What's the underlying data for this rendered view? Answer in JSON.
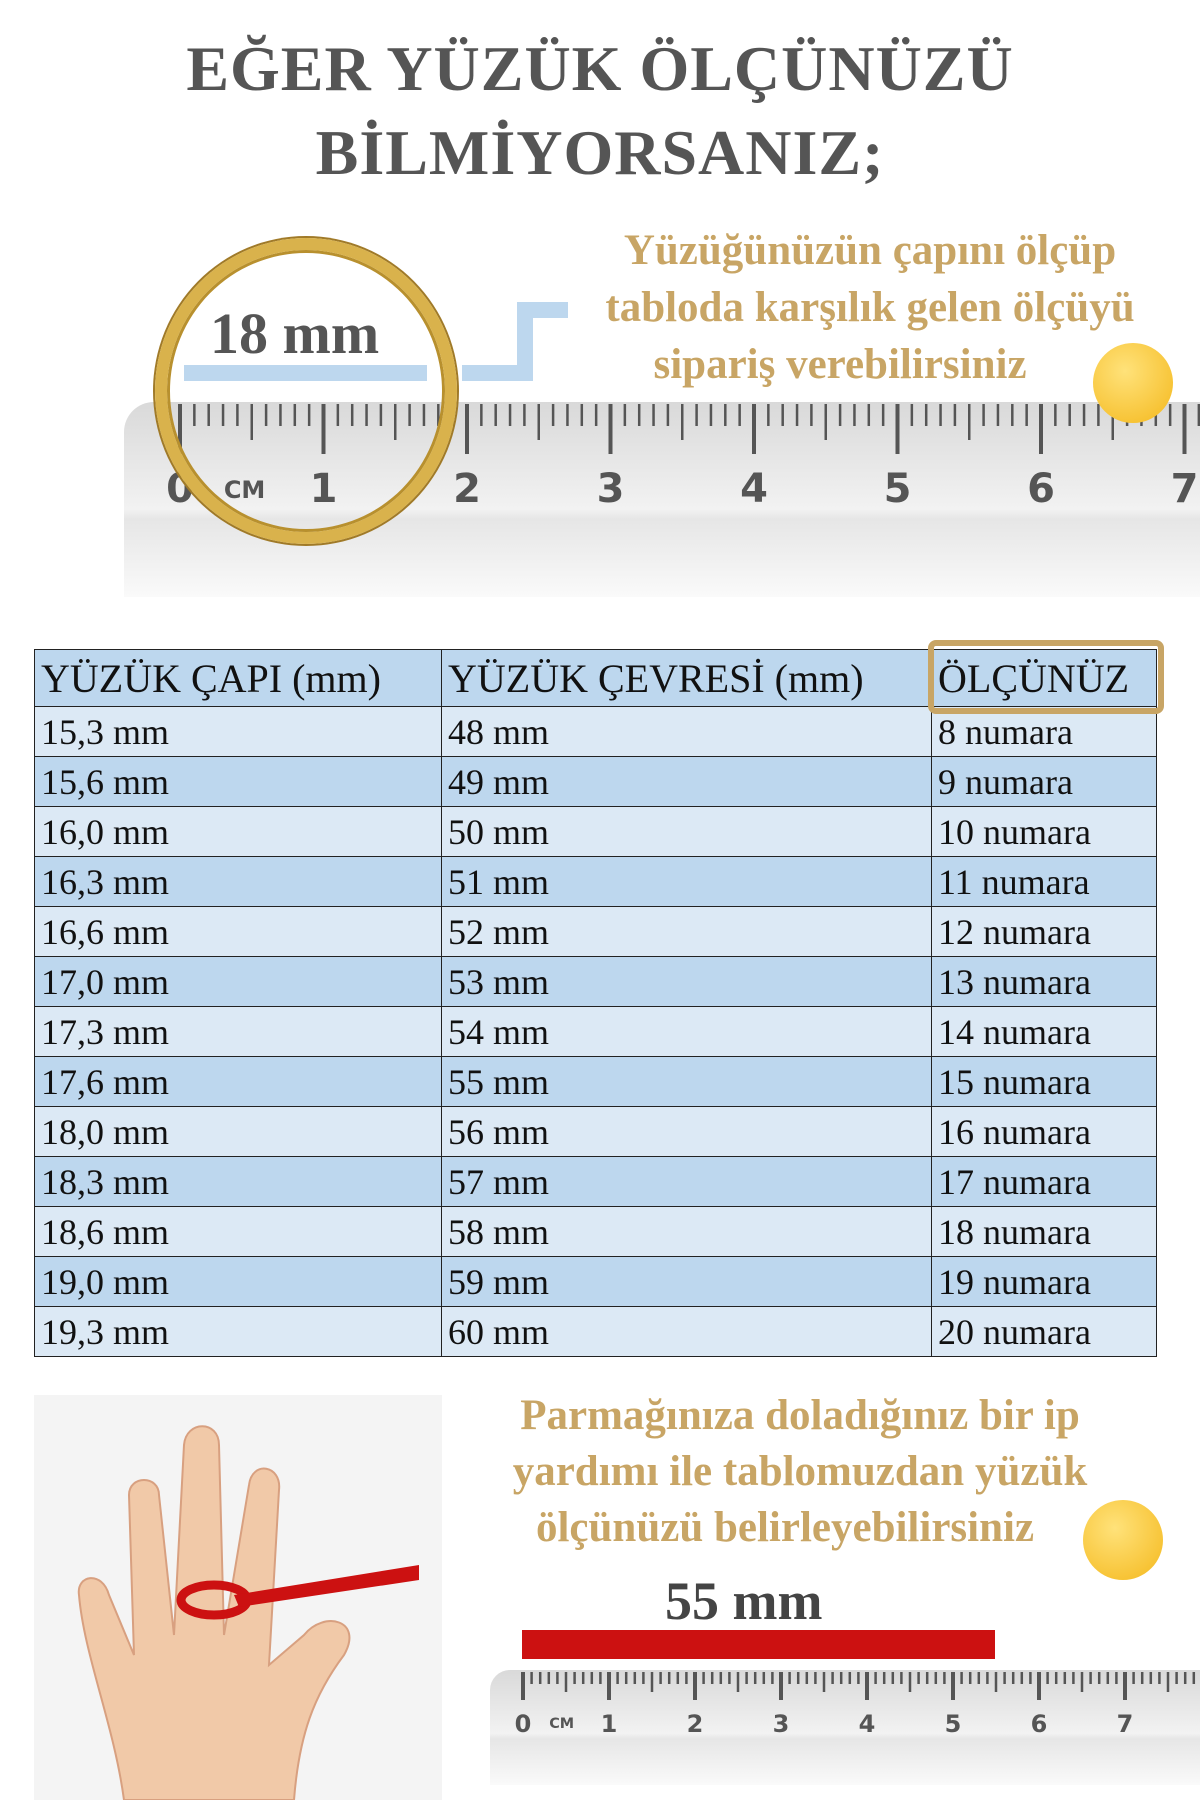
{
  "title": {
    "line1": "EĞER YÜZÜK ÖLÇÜNÜZÜ",
    "line2": "BİLMİYORSANIZ;"
  },
  "ring_section": {
    "measure": "18 mm",
    "text": [
      "Yüzüğünüzün çapını ölçüp",
      "tabloda karşılık gelen ölçüyü",
      "sipariş verebilirsiniz"
    ],
    "icon": "wink-smiley-icon",
    "ruler_unit": "CM",
    "ruler_numbers": [
      "0",
      "1",
      "2",
      "3",
      "4",
      "5",
      "6",
      "7"
    ]
  },
  "table": {
    "headers": [
      "YÜZÜK ÇAPI (mm)",
      "YÜZÜK ÇEVRESİ (mm)",
      "ÖLÇÜNÜZ"
    ],
    "rows": [
      [
        "15,3 mm",
        "48 mm",
        "8 numara"
      ],
      [
        "15,6 mm",
        "49 mm",
        "9 numara"
      ],
      [
        "16,0 mm",
        "50 mm",
        "10 numara"
      ],
      [
        "16,3 mm",
        "51 mm",
        "11 numara"
      ],
      [
        "16,6 mm",
        "52 mm",
        "12 numara"
      ],
      [
        "17,0 mm",
        "53 mm",
        "13 numara"
      ],
      [
        "17,3 mm",
        "54 mm",
        "14 numara"
      ],
      [
        "17,6 mm",
        "55 mm",
        "15 numara"
      ],
      [
        "18,0 mm",
        "56 mm",
        "16 numara"
      ],
      [
        "18,3 mm",
        "57 mm",
        "17 numara"
      ],
      [
        "18,6 mm",
        "58 mm",
        "18 numara"
      ],
      [
        "19,0 mm",
        "59 mm",
        "19 numara"
      ],
      [
        "19,3 mm",
        "60 mm",
        "20 numara"
      ]
    ]
  },
  "finger_section": {
    "text": [
      "Parmağınıza doladığınız bir ip",
      "yardımı ile tablomuzdan yüzük",
      "ölçünüzü belirleyebilirsiniz"
    ],
    "measure": "55 mm",
    "icon": "blush-smiley-icon",
    "ruler_unit": "CM",
    "ruler_numbers": [
      "0",
      "1",
      "2",
      "3",
      "4",
      "5",
      "6",
      "7"
    ]
  },
  "colors": {
    "gold": "#c8a565",
    "blue_light": "#dce9f5",
    "blue": "#bdd7ee",
    "red": "#cc1111"
  }
}
